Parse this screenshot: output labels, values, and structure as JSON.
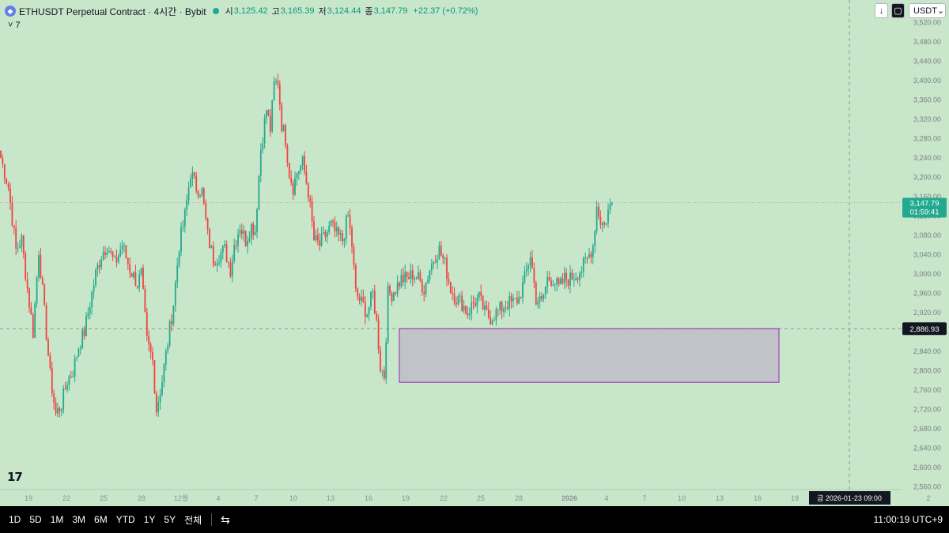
{
  "header": {
    "title": "ETHUSDT Perpetual Contract · 4시간 · Bybit",
    "open_label": "시",
    "open": "3,125.42",
    "high_label": "고",
    "high": "3,165.39",
    "low_label": "저",
    "low": "3,124.44",
    "close_label": "종",
    "close": "3,147.79",
    "change": "+22.37 (+0.72%)",
    "indicator_toggle": "7"
  },
  "toolbar": {
    "currency": "USDT",
    "arrow_icon": "down-arrow-icon",
    "chart_icon": "square-icon"
  },
  "price_labels": {
    "current": "3,147.79",
    "countdown": "01:59:41",
    "crosshair": "2,886.93"
  },
  "time_readout": "금 2026-01-23   09:00",
  "bottom": {
    "ranges": [
      "1D",
      "5D",
      "1M",
      "3M",
      "6M",
      "YTD",
      "1Y",
      "5Y",
      "전체"
    ],
    "clock": "11:00:19 UTC+9"
  },
  "colors": {
    "background": "#c8e6c9",
    "up": "#22a98e",
    "down": "#ef4343",
    "box_fill": "#c2c3c9",
    "box_border": "#9c27b0"
  },
  "chart_data": {
    "type": "candlestick",
    "symbol": "ETHUSDT",
    "interval": "4h",
    "ylim": [
      2560,
      3520
    ],
    "y_ticks": [
      2560,
      2600,
      2640,
      2680,
      2720,
      2760,
      2800,
      2840,
      2880,
      2920,
      2960,
      3000,
      3040,
      3080,
      3120,
      3160,
      3200,
      3240,
      3280,
      3320,
      3360,
      3400,
      3440,
      3480,
      3520
    ],
    "x_ticks": [
      "19",
      "22",
      "25",
      "28",
      "12월",
      "4",
      "7",
      "10",
      "13",
      "16",
      "19",
      "22",
      "25",
      "28",
      "2026",
      "4",
      "7",
      "10",
      "13",
      "16",
      "19",
      "22",
      "2"
    ],
    "current_price": 3147.79,
    "crosshair_price": 2886.93,
    "zone": {
      "top": 2886.93,
      "bottom": 2776
    },
    "anchors": [
      [
        0,
        3240
      ],
      [
        4,
        3180
      ],
      [
        8,
        3050
      ],
      [
        11,
        3070
      ],
      [
        14,
        2970
      ],
      [
        17,
        2880
      ],
      [
        20,
        3050
      ],
      [
        23,
        2920
      ],
      [
        26,
        2790
      ],
      [
        29,
        2710
      ],
      [
        32,
        2730
      ],
      [
        35,
        2780
      ],
      [
        38,
        2800
      ],
      [
        41,
        2850
      ],
      [
        44,
        2880
      ],
      [
        47,
        2940
      ],
      [
        50,
        3000
      ],
      [
        53,
        3040
      ],
      [
        56,
        3060
      ],
      [
        60,
        3020
      ],
      [
        64,
        3060
      ],
      [
        68,
        3010
      ],
      [
        72,
        2980
      ],
      [
        74,
        3000
      ],
      [
        77,
        2860
      ],
      [
        80,
        2820
      ],
      [
        82,
        2720
      ],
      [
        85,
        2780
      ],
      [
        88,
        2860
      ],
      [
        91,
        2940
      ],
      [
        94,
        3060
      ],
      [
        97,
        3120
      ],
      [
        100,
        3210
      ],
      [
        103,
        3180
      ],
      [
        106,
        3170
      ],
      [
        109,
        3080
      ],
      [
        112,
        3030
      ],
      [
        115,
        3040
      ],
      [
        118,
        3050
      ],
      [
        121,
        3010
      ],
      [
        123,
        3060
      ],
      [
        126,
        3100
      ],
      [
        129,
        3070
      ],
      [
        132,
        3100
      ],
      [
        134,
        3090
      ],
      [
        137,
        3260
      ],
      [
        140,
        3340
      ],
      [
        142,
        3300
      ],
      [
        144,
        3390
      ],
      [
        146,
        3400
      ],
      [
        148,
        3310
      ],
      [
        150,
        3280
      ],
      [
        152,
        3210
      ],
      [
        154,
        3180
      ],
      [
        156,
        3210
      ],
      [
        159,
        3230
      ],
      [
        162,
        3170
      ],
      [
        165,
        3070
      ],
      [
        168,
        3060
      ],
      [
        171,
        3080
      ],
      [
        174,
        3100
      ],
      [
        177,
        3080
      ],
      [
        180,
        3070
      ],
      [
        183,
        3120
      ],
      [
        185,
        3060
      ],
      [
        187,
        2960
      ],
      [
        190,
        2940
      ],
      [
        193,
        2920
      ],
      [
        196,
        2960
      ],
      [
        198,
        2900
      ],
      [
        200,
        2810
      ],
      [
        202,
        2790
      ],
      [
        204,
        2960
      ],
      [
        206,
        2960
      ],
      [
        208,
        2970
      ],
      [
        211,
        2990
      ],
      [
        214,
        2990
      ],
      [
        217,
        3000
      ],
      [
        220,
        2990
      ],
      [
        223,
        2970
      ],
      [
        226,
        3010
      ],
      [
        229,
        3040
      ],
      [
        231,
        3050
      ],
      [
        234,
        3020
      ],
      [
        237,
        2970
      ],
      [
        240,
        2950
      ],
      [
        243,
        2940
      ],
      [
        246,
        2920
      ],
      [
        249,
        2940
      ],
      [
        252,
        2950
      ],
      [
        255,
        2920
      ],
      [
        258,
        2910
      ],
      [
        261,
        2920
      ],
      [
        264,
        2930
      ],
      [
        267,
        2940
      ],
      [
        270,
        2940
      ],
      [
        273,
        2950
      ],
      [
        276,
        2990
      ],
      [
        279,
        3040
      ],
      [
        282,
        2950
      ],
      [
        285,
        2940
      ],
      [
        288,
        2990
      ],
      [
        291,
        2990
      ],
      [
        294,
        2970
      ],
      [
        297,
        2990
      ],
      [
        300,
        2990
      ],
      [
        303,
        3000
      ],
      [
        306,
        3010
      ],
      [
        309,
        3030
      ],
      [
        312,
        3060
      ],
      [
        314,
        3140
      ],
      [
        316,
        3110
      ],
      [
        318,
        3100
      ],
      [
        320,
        3130
      ],
      [
        322,
        3148
      ]
    ]
  }
}
